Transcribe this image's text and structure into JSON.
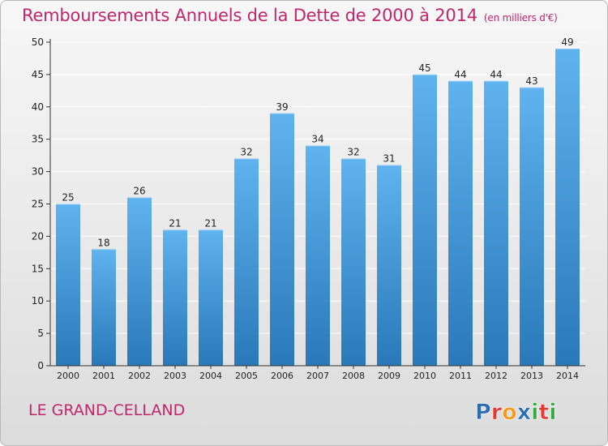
{
  "title": "Remboursements Annuels de la Dette de 2000 à 2014",
  "subtitle": "(en milliers d'€)",
  "place_name": "LE GRAND-CELLAND",
  "logo": {
    "text": "Proxiti",
    "letters": [
      {
        "char": "P",
        "color": "#2a6db5"
      },
      {
        "char": "r",
        "color": "#e53a32"
      },
      {
        "char": "o",
        "color": "#f29a1f"
      },
      {
        "char": "x",
        "color": "#2a6db5"
      },
      {
        "char": "i",
        "color": "#35a93b"
      },
      {
        "char": "t",
        "color": "#e53a32"
      },
      {
        "char": "i",
        "color": "#35a93b"
      }
    ]
  },
  "colors": {
    "title": "#c0266a",
    "bar_top": "#5fb3ee",
    "bar_bottom": "#2a78b8",
    "axis": "#333333",
    "grid": "#ffffff"
  },
  "chart_data": {
    "type": "bar",
    "title": "Remboursements Annuels de la Dette de 2000 à 2014",
    "subtitle": "(en milliers d'€)",
    "xlabel": "",
    "ylabel": "",
    "categories": [
      "2000",
      "2001",
      "2002",
      "2003",
      "2004",
      "2005",
      "2006",
      "2007",
      "2008",
      "2009",
      "2010",
      "2011",
      "2012",
      "2013",
      "2014"
    ],
    "values": [
      25,
      18,
      26,
      21,
      21,
      32,
      39,
      34,
      32,
      31,
      45,
      44,
      44,
      43,
      49
    ],
    "ylim": [
      0,
      50
    ],
    "yticks": [
      0,
      5,
      10,
      15,
      20,
      25,
      30,
      35,
      40,
      45,
      50
    ],
    "grid": true,
    "data_labels": true
  }
}
